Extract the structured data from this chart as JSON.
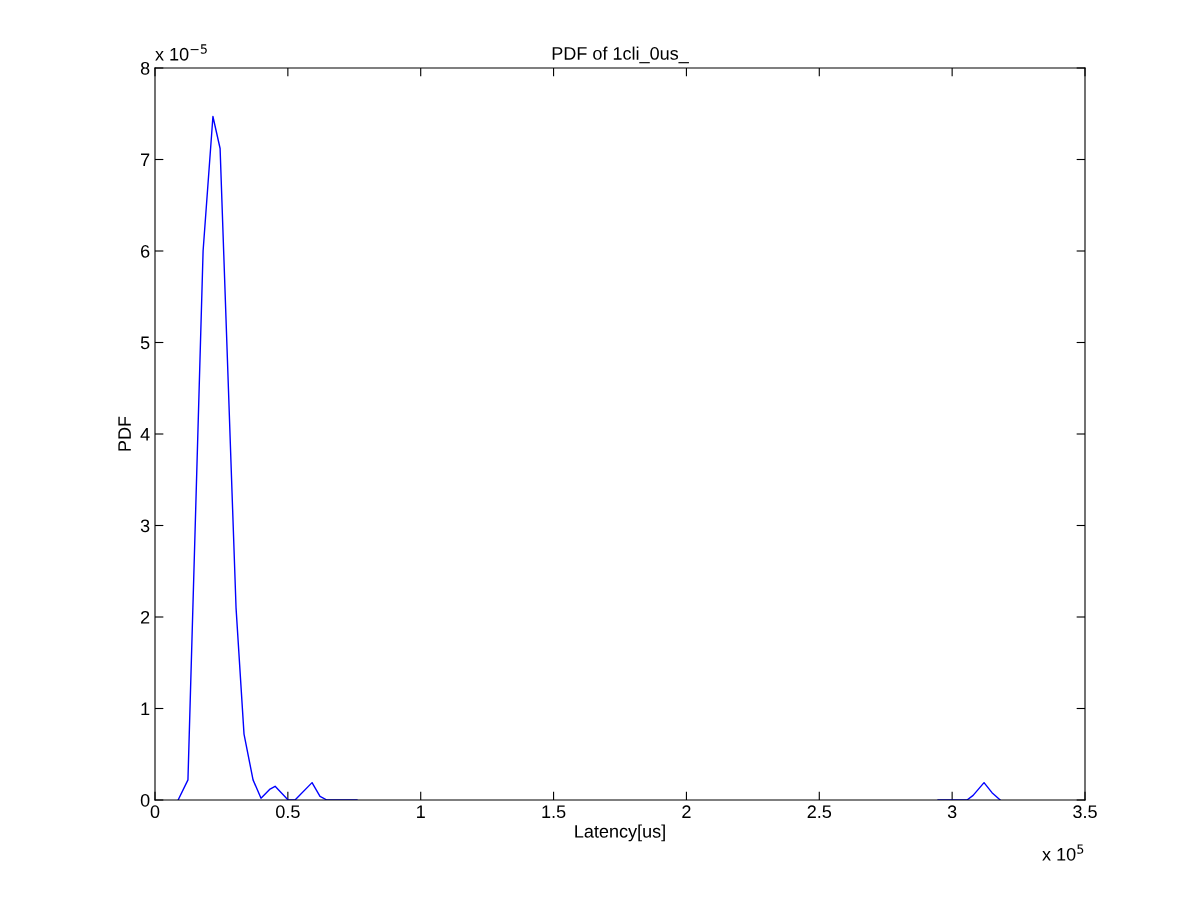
{
  "chart_data": {
    "type": "line",
    "title": "PDF of 1cli_0us_",
    "xlabel": "Latency[us]",
    "ylabel": "PDF",
    "x": [
      0.087,
      0.124,
      0.181,
      0.218,
      0.245,
      0.305,
      0.335,
      0.369,
      0.399,
      0.433,
      0.452,
      0.501,
      0.527,
      0.591,
      0.621,
      0.647,
      0.76,
      2.0,
      2.947,
      3.056,
      3.079,
      3.12,
      3.15,
      3.181
    ],
    "series": [
      {
        "color": "#0000ff",
        "values": [
          0,
          0.22,
          6.0,
          7.47,
          7.12,
          2.1,
          0.72,
          0.22,
          0.02,
          0.12,
          0.15,
          0,
          0,
          0.19,
          0.04,
          0,
          0,
          null,
          0,
          0,
          0.05,
          0.19,
          0.08,
          0
        ]
      }
    ],
    "xlim": [
      0,
      3.5
    ],
    "ylim": [
      0,
      8
    ],
    "xticks": [
      0,
      0.5,
      1,
      1.5,
      2,
      2.5,
      3,
      3.5
    ],
    "yticks": [
      0,
      1,
      2,
      3,
      4,
      5,
      6,
      7,
      8
    ],
    "annotations": [
      "x 10$^{−5}$",
      "x 10$^{5}$"
    ],
    "marker": "none",
    "line_style": "solid"
  }
}
